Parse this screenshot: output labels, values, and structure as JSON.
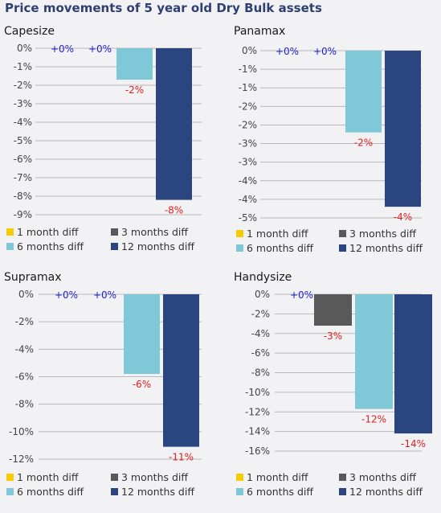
{
  "title": "Price movements of 5 year old Dry Bulk assets",
  "colors": {
    "1 month diff": "#f5cc00",
    "3 months diff": "#595959",
    "6 months diff": "#7ec8d8",
    "12 months diff": "#2b4580",
    "positive_label": "#2222cc",
    "negative_label": "#e02020"
  },
  "legend": [
    "1 month diff",
    "3 months diff",
    "6 months diff",
    "12 months diff"
  ],
  "chart_data": [
    {
      "type": "bar",
      "title": "Capesize",
      "categories": [
        "1 month diff",
        "3 months diff",
        "6 months diff",
        "12 months diff"
      ],
      "values": [
        0,
        0,
        -1.7,
        -8.2
      ],
      "data_labels": [
        "+0%",
        "+0%",
        "-2%",
        "-8%"
      ],
      "yticks": [
        "0%",
        "-1%",
        "-2%",
        "-3%",
        "-4%",
        "-5%",
        "-6%",
        "-7%",
        "-8%",
        "-9%"
      ],
      "ylim": [
        -9,
        0
      ]
    },
    {
      "type": "bar",
      "title": "Panamax",
      "categories": [
        "1 month diff",
        "3 months diff",
        "6 months diff",
        "12 months diff"
      ],
      "values": [
        0,
        0,
        -2.2,
        -4.2
      ],
      "data_labels": [
        "+0%",
        "+0%",
        "-2%",
        "-4%"
      ],
      "yticks": [
        "0%",
        "-1%",
        "-1%",
        "-2%",
        "-2%",
        "-3%",
        "-3%",
        "-4%",
        "-4%",
        "-5%"
      ],
      "ylim": [
        -4.5,
        0
      ]
    },
    {
      "type": "bar",
      "title": "Supramax",
      "categories": [
        "1 month diff",
        "3 months diff",
        "6 months diff",
        "12 months diff"
      ],
      "values": [
        0,
        0,
        -5.8,
        -11.1
      ],
      "data_labels": [
        "+0%",
        "+0%",
        "-6%",
        "-11%"
      ],
      "yticks": [
        "0%",
        "-2%",
        "-4%",
        "-6%",
        "-8%",
        "-10%",
        "-12%"
      ],
      "ylim": [
        -12,
        0
      ]
    },
    {
      "type": "bar",
      "title": "Handysize",
      "categories": [
        "1 month diff",
        "3 months diff",
        "6 months diff",
        "12 months diff"
      ],
      "values": [
        0,
        -3.2,
        -11.7,
        -14.2
      ],
      "data_labels": [
        "+0%",
        "-3%",
        "-12%",
        "-14%"
      ],
      "yticks": [
        "0%",
        "-2%",
        "-4%",
        "-6%",
        "-8%",
        "-10%",
        "-12%",
        "-14%",
        "-16%"
      ],
      "ylim": [
        -16,
        0
      ]
    }
  ]
}
